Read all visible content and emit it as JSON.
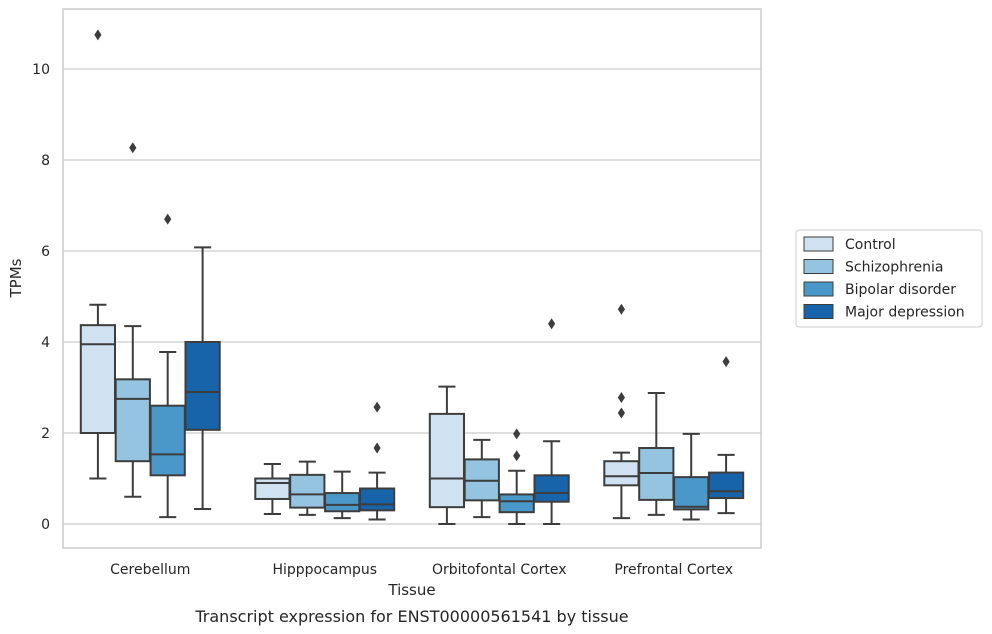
{
  "chart_data": {
    "type": "box",
    "title": "",
    "caption": "Transcript expression for ENST00000561541 by tissue",
    "xlabel": "Tissue",
    "ylabel": "TPMs",
    "ylim": [
      -0.5,
      11.3
    ],
    "yticks": [
      0,
      2,
      4,
      6,
      8,
      10
    ],
    "grid": "horizontal",
    "legend_position": "right",
    "categories": [
      "Cerebellum",
      "Hipppocampus",
      "Orbitofontal Cortex",
      "Prefrontal Cortex"
    ],
    "series": [
      {
        "name": "Control",
        "color": "#d0e1f2",
        "boxes": [
          {
            "whisker_low": 1.0,
            "q1": 2.0,
            "median": 3.95,
            "q3": 4.37,
            "whisker_high": 4.82,
            "outliers": [
              10.75
            ]
          },
          {
            "whisker_low": 0.22,
            "q1": 0.55,
            "median": 0.9,
            "q3": 1.0,
            "whisker_high": 1.32,
            "outliers": []
          },
          {
            "whisker_low": 0.0,
            "q1": 0.37,
            "median": 1.0,
            "q3": 2.42,
            "whisker_high": 3.02,
            "outliers": []
          },
          {
            "whisker_low": 0.13,
            "q1": 0.85,
            "median": 1.05,
            "q3": 1.38,
            "whisker_high": 1.57,
            "outliers": [
              4.72,
              2.78,
              2.44
            ]
          }
        ]
      },
      {
        "name": "Schizophrenia",
        "color": "#94c4df",
        "boxes": [
          {
            "whisker_low": 0.6,
            "q1": 1.38,
            "median": 2.75,
            "q3": 3.18,
            "whisker_high": 4.35,
            "outliers": [
              8.27
            ]
          },
          {
            "whisker_low": 0.2,
            "q1": 0.36,
            "median": 0.65,
            "q3": 1.08,
            "whisker_high": 1.37,
            "outliers": []
          },
          {
            "whisker_low": 0.15,
            "q1": 0.52,
            "median": 0.95,
            "q3": 1.42,
            "whisker_high": 1.85,
            "outliers": []
          },
          {
            "whisker_low": 0.2,
            "q1": 0.53,
            "median": 1.12,
            "q3": 1.67,
            "whisker_high": 2.88,
            "outliers": []
          }
        ]
      },
      {
        "name": "Bipolar disorder",
        "color": "#4a98c9",
        "boxes": [
          {
            "whisker_low": 0.15,
            "q1": 1.07,
            "median": 1.53,
            "q3": 2.6,
            "whisker_high": 3.78,
            "outliers": [
              6.7
            ]
          },
          {
            "whisker_low": 0.13,
            "q1": 0.28,
            "median": 0.42,
            "q3": 0.68,
            "whisker_high": 1.15,
            "outliers": []
          },
          {
            "whisker_low": 0.0,
            "q1": 0.26,
            "median": 0.5,
            "q3": 0.65,
            "whisker_high": 1.17,
            "outliers": [
              1.98,
              1.5
            ]
          },
          {
            "whisker_low": 0.1,
            "q1": 0.32,
            "median": 0.38,
            "q3": 1.03,
            "whisker_high": 1.98,
            "outliers": []
          }
        ]
      },
      {
        "name": "Major depression",
        "color": "#1764ab",
        "boxes": [
          {
            "whisker_low": 0.33,
            "q1": 2.07,
            "median": 2.9,
            "q3": 4.0,
            "whisker_high": 6.08,
            "outliers": []
          },
          {
            "whisker_low": 0.1,
            "q1": 0.3,
            "median": 0.43,
            "q3": 0.78,
            "whisker_high": 1.13,
            "outliers": [
              1.67,
              2.57
            ]
          },
          {
            "whisker_low": 0.0,
            "q1": 0.49,
            "median": 0.68,
            "q3": 1.07,
            "whisker_high": 1.82,
            "outliers": [
              4.4
            ]
          },
          {
            "whisker_low": 0.24,
            "q1": 0.57,
            "median": 0.72,
            "q3": 1.13,
            "whisker_high": 1.52,
            "outliers": [
              3.57
            ]
          }
        ]
      }
    ]
  }
}
